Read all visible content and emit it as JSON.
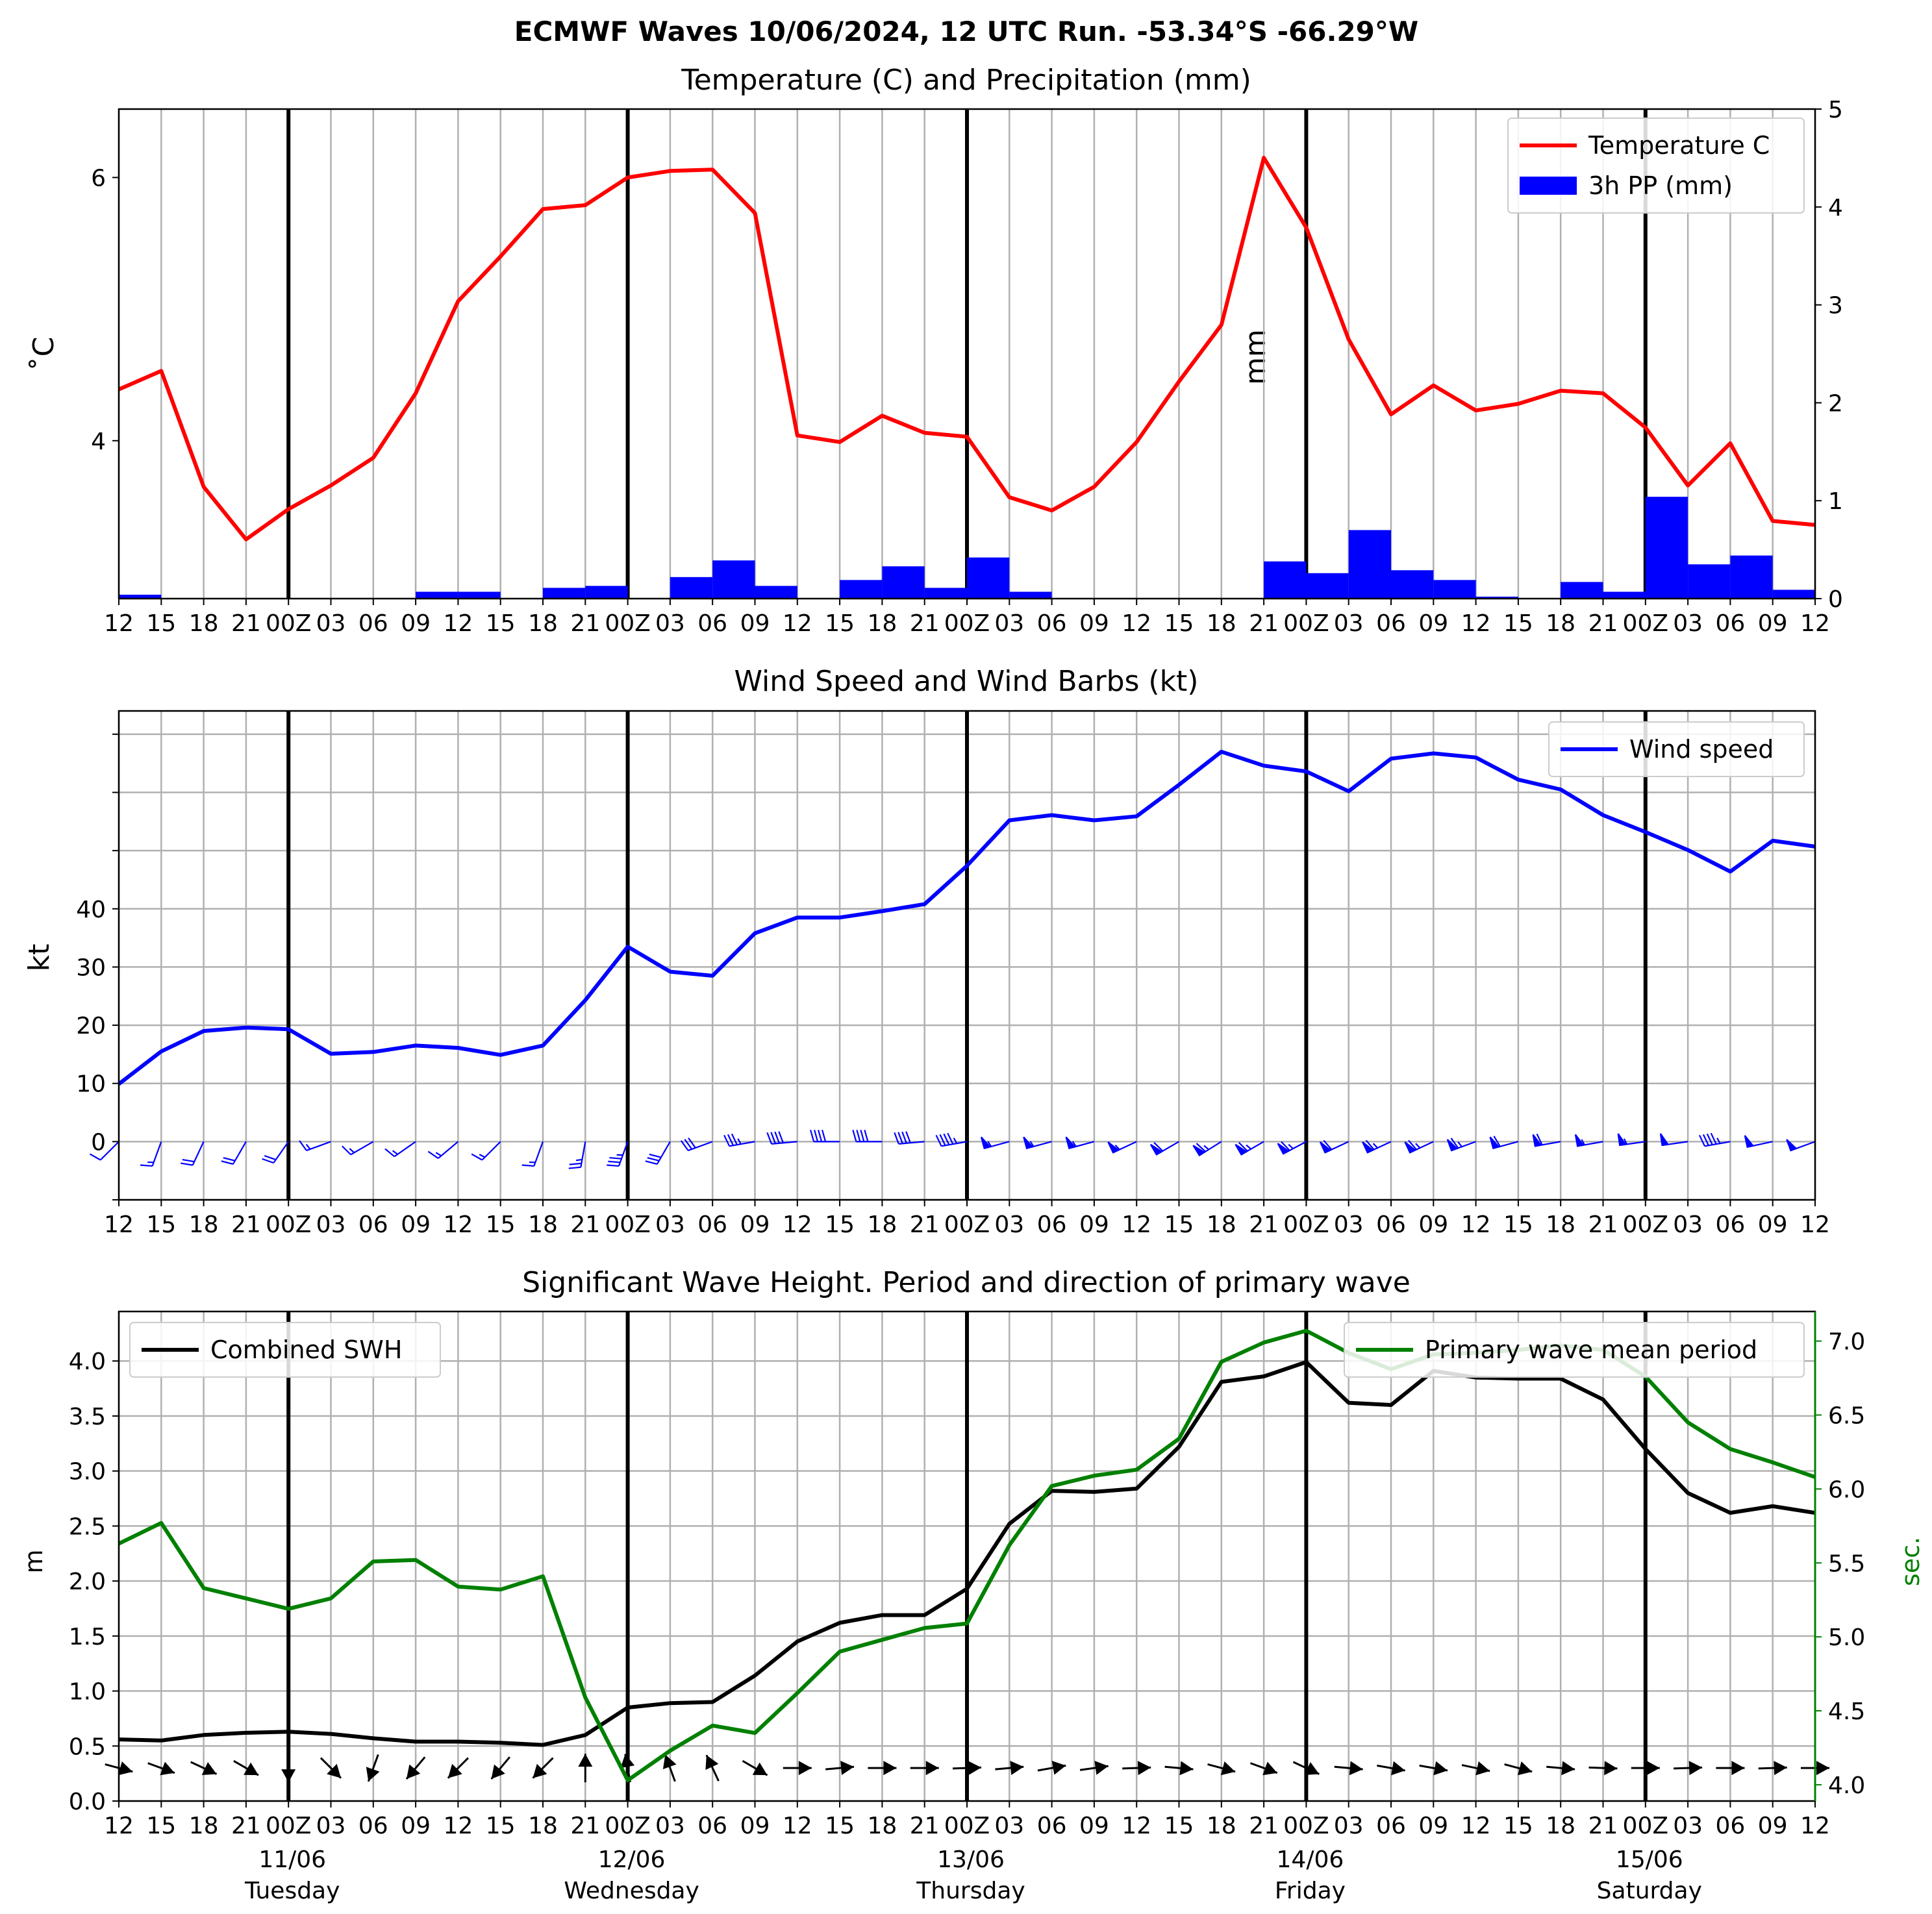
{
  "suptitle": "ECMWF Waves 10/06/2024, 12 UTC Run. -53.34°S -66.29°W",
  "time_axis": {
    "tick_labels": [
      "12",
      "15",
      "18",
      "21",
      "00Z",
      "03",
      "06",
      "09",
      "12",
      "15",
      "18",
      "21",
      "00Z",
      "03",
      "06",
      "09",
      "12",
      "15",
      "18",
      "21",
      "00Z",
      "03",
      "06",
      "09",
      "12",
      "15",
      "18",
      "21",
      "00Z",
      "03",
      "06",
      "09",
      "12",
      "15",
      "18",
      "21",
      "00Z",
      "03",
      "06",
      "09",
      "12"
    ],
    "day_labels": [
      {
        "date": "11/06",
        "weekday": "Tuesday"
      },
      {
        "date": "12/06",
        "weekday": "Wednesday"
      },
      {
        "date": "13/06",
        "weekday": "Thursday"
      },
      {
        "date": "14/06",
        "weekday": "Friday"
      },
      {
        "date": "15/06",
        "weekday": "Saturday"
      }
    ]
  },
  "colors": {
    "temperature": "#ff0000",
    "precip": "#0000ff",
    "wind": "#0000ff",
    "swh": "#000000",
    "period": "#008000",
    "grid": "#b0b0b0"
  },
  "chart_data": [
    {
      "type": "line",
      "title": "Temperature (C) and Precipitation (mm)",
      "ylabel": "˚C",
      "y2label": "mm",
      "ylim": [
        2.8,
        6.52
      ],
      "y2lim": [
        0,
        5
      ],
      "yticks": [
        4,
        6
      ],
      "y2ticks": [
        0,
        1,
        2,
        3,
        4,
        5
      ],
      "grid": true,
      "legend_position": "top-right",
      "series": [
        {
          "name": "Temperature C",
          "kind": "line",
          "values": [
            4.39,
            4.53,
            3.65,
            3.25,
            3.48,
            3.66,
            3.87,
            4.36,
            5.06,
            5.4,
            5.76,
            5.79,
            6.0,
            6.05,
            6.06,
            5.73,
            4.04,
            3.99,
            4.19,
            4.06,
            4.03,
            3.57,
            3.47,
            3.65,
            3.99,
            4.45,
            4.88,
            6.15,
            5.62,
            4.77,
            4.2,
            4.42,
            4.23,
            4.28,
            4.38,
            4.36,
            4.1,
            3.66,
            3.98,
            3.39,
            3.36
          ]
        },
        {
          "name": "3h PP (mm)",
          "kind": "bar",
          "values": [
            0.04,
            0.0,
            0.0,
            0.0,
            0.0,
            0.0,
            0.0,
            0.07,
            0.07,
            0.0,
            0.11,
            0.13,
            0.0,
            0.22,
            0.39,
            0.13,
            0.0,
            0.19,
            0.33,
            0.11,
            0.42,
            0.07,
            0.0,
            0.0,
            0.0,
            0.0,
            0.0,
            0.38,
            0.26,
            0.7,
            0.29,
            0.19,
            0.02,
            0.0,
            0.17,
            0.07,
            1.04,
            0.35,
            0.44,
            0.09
          ]
        }
      ]
    },
    {
      "type": "line",
      "title": "Wind Speed and Wind Barbs (kt)",
      "ylabel": "kt",
      "ylim": [
        -10,
        74
      ],
      "yticks": [
        0,
        10,
        20,
        30,
        40
      ],
      "grid": true,
      "legend_position": "top-right",
      "series": [
        {
          "name": "Wind speed",
          "kind": "line",
          "values": [
            9.9,
            15.5,
            19.0,
            19.6,
            19.3,
            15.1,
            15.4,
            16.5,
            16.1,
            14.9,
            16.5,
            24.3,
            33.5,
            29.2,
            28.5,
            35.8,
            38.5,
            38.5,
            39.6,
            40.8,
            47.4,
            55.2,
            56.1,
            55.2,
            55.9,
            61.3,
            67.0,
            64.6,
            63.6,
            60.2,
            65.8,
            66.7,
            66.0,
            62.2,
            60.5,
            56.1,
            53.2,
            50.1,
            46.4,
            51.7,
            50.7
          ]
        }
      ],
      "wind_barbs": {
        "speed_kt": [
          9.9,
          15.5,
          19.0,
          19.6,
          19.3,
          15.1,
          15.4,
          16.5,
          16.1,
          14.9,
          16.5,
          24.3,
          33.5,
          29.2,
          28.5,
          35.8,
          38.5,
          38.5,
          39.6,
          40.8,
          47.4,
          55.2,
          56.1,
          55.2,
          55.9,
          61.3,
          67.0,
          64.6,
          63.6,
          60.2,
          65.8,
          66.7,
          66.0,
          62.2,
          60.5,
          56.1,
          53.2,
          50.1,
          46.4,
          51.7,
          50.7
        ],
        "direction_deg": [
          225,
          200,
          205,
          210,
          215,
          250,
          240,
          235,
          230,
          225,
          200,
          190,
          200,
          210,
          250,
          260,
          265,
          270,
          270,
          265,
          260,
          255,
          255,
          255,
          245,
          240,
          238,
          240,
          242,
          245,
          245,
          245,
          250,
          255,
          260,
          260,
          262,
          262,
          260,
          258,
          250
        ]
      }
    },
    {
      "type": "line",
      "title": "Significant Wave Height. Period and direction of primary wave",
      "ylabel": "m",
      "y2label": "sec.",
      "ylim": [
        0,
        4.45
      ],
      "y2lim": [
        3.89,
        7.2
      ],
      "yticks": [
        0.0,
        0.5,
        1.0,
        1.5,
        2.0,
        2.5,
        3.0,
        3.5,
        4.0
      ],
      "y2ticks": [
        4.0,
        4.5,
        5.0,
        5.5,
        6.0,
        6.5,
        7.0
      ],
      "grid": true,
      "series": [
        {
          "name": "Combined SWH",
          "axis": "left",
          "legend_position": "top-left",
          "values": [
            0.56,
            0.55,
            0.6,
            0.62,
            0.63,
            0.61,
            0.57,
            0.54,
            0.54,
            0.53,
            0.51,
            0.6,
            0.85,
            0.89,
            0.9,
            1.14,
            1.45,
            1.62,
            1.69,
            1.69,
            1.93,
            2.52,
            2.82,
            2.81,
            2.84,
            3.22,
            3.81,
            3.86,
            3.99,
            3.62,
            3.6,
            3.91,
            3.85,
            3.84,
            3.84,
            3.65,
            3.2,
            2.8,
            2.62,
            2.68,
            2.62
          ]
        },
        {
          "name": "Primary wave mean period",
          "axis": "right",
          "legend_position": "top-right",
          "values": [
            5.63,
            5.77,
            5.33,
            5.26,
            5.19,
            5.26,
            5.51,
            5.52,
            5.34,
            5.32,
            5.41,
            4.59,
            4.03,
            4.23,
            4.4,
            4.35,
            4.62,
            4.9,
            4.98,
            5.06,
            5.09,
            5.62,
            6.02,
            6.09,
            6.13,
            6.34,
            6.86,
            6.99,
            7.07,
            6.92,
            6.81,
            6.91,
            6.92,
            6.94,
            6.97,
            6.94,
            6.76,
            6.45,
            6.27,
            6.18,
            6.08
          ]
        }
      ],
      "wave_direction_deg": [
        285,
        290,
        295,
        300,
        0,
        315,
        20,
        40,
        45,
        40,
        45,
        180,
        170,
        160,
        155,
        300,
        270,
        265,
        270,
        270,
        268,
        265,
        260,
        262,
        268,
        275,
        285,
        290,
        295,
        275,
        280,
        280,
        282,
        285,
        275,
        272,
        270,
        268,
        270,
        268,
        270
      ]
    }
  ]
}
